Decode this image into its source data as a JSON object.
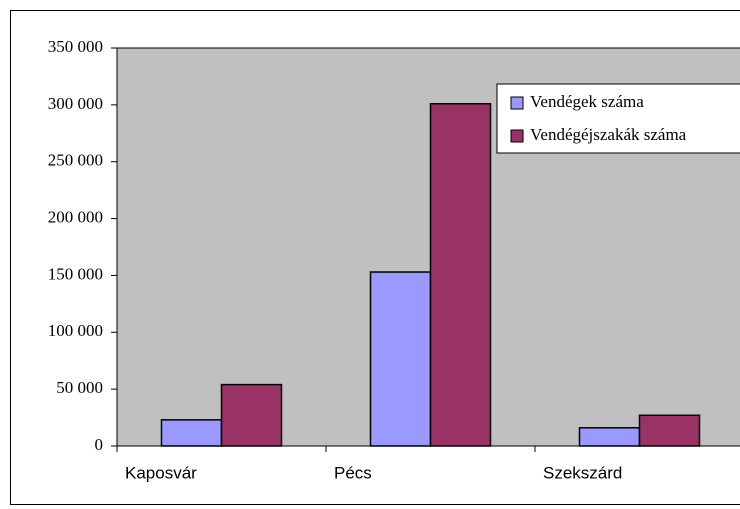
{
  "chart_data": {
    "type": "bar",
    "categories": [
      "Kaposvár",
      "Pécs",
      "Szekszárd"
    ],
    "series": [
      {
        "name": "Vendégek száma",
        "color": "#9999ff",
        "values": [
          23000,
          153000,
          16000
        ]
      },
      {
        "name": "Vendégéjszakák száma",
        "color": "#993366",
        "values": [
          54000,
          301000,
          27000
        ]
      }
    ],
    "ylim": [
      0,
      350000
    ],
    "yticks": [
      0,
      {
        "value": 50000,
        "label": "50 000"
      },
      {
        "value": 100000,
        "label": "100 000"
      },
      {
        "value": 150000,
        "label": "150 000"
      },
      {
        "value": 200000,
        "label": "200 000"
      },
      {
        "value": 250000,
        "label": "250 000"
      },
      {
        "value": 300000,
        "label": "300 000"
      },
      {
        "value": 350000,
        "label": "350 000"
      }
    ],
    "grid": false,
    "legend": "top-right",
    "plot_background": "#c0c0c0"
  }
}
